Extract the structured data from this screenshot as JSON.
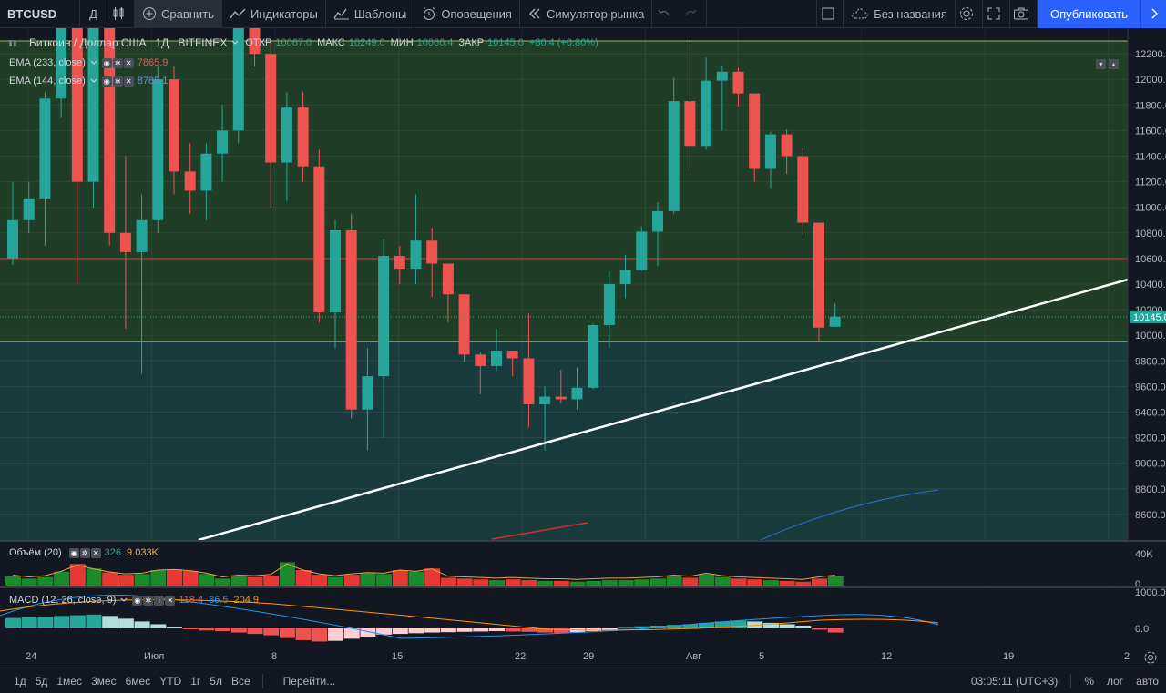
{
  "toolbar": {
    "symbol": "BTCUSD",
    "interval": "Д",
    "compare": "Сравнить",
    "indicators": "Индикаторы",
    "templates": "Шаблоны",
    "alerts": "Оповещения",
    "replay": "Симулятор рынка",
    "layout_name": "Без названия",
    "publish": "Опубликовать"
  },
  "legend": {
    "title": "Биткоин / Доллар США",
    "interval": "1Д",
    "exchange": "BITFINEX",
    "open_label": "ОТКР",
    "open_value": "10067.0",
    "high_label": "МАКС",
    "high_value": "10249.0",
    "low_label": "МИН",
    "low_value": "10066.4",
    "close_label": "ЗАКР",
    "close_value": "10145.0",
    "change": "+80.4 (+0.80%)",
    "ema1_label": "EMA (233, close)",
    "ema1_value": "7865.9",
    "ema2_label": "EMA (144, close)",
    "ema2_value": "8785.1",
    "volume_label": "Объём (20)",
    "volume_v1": "326",
    "volume_v2": "9.033K",
    "macd_label": "MACD (12, 26, close, 9)",
    "macd_v1": "118.4",
    "macd_v2": "86.5",
    "macd_v3": "204.9"
  },
  "colors": {
    "bg": "#131722",
    "up": "#26a69a",
    "down": "#ef5350",
    "green_zone": "#1f3d27",
    "teal_zone": "#1a3b3c",
    "red_line": "#c62828",
    "price_label": "#26a69a"
  },
  "chart_data": {
    "type": "candlestick",
    "symbol": "BTCUSD",
    "y_ticks": [
      "12200.0",
      "12000.0",
      "11800.0",
      "11600.0",
      "11400.0",
      "11200.0",
      "11000.0",
      "10800.0",
      "10600.0",
      "10400.0",
      "10200.0",
      "10000.0",
      "9800.0",
      "9600.0",
      "9400.0",
      "9200.0",
      "9000.0",
      "8800.0",
      "8600.0"
    ],
    "ylim": [
      8400,
      12400
    ],
    "current_price": "10145.0",
    "horizontal_levels": [
      10600,
      9950
    ],
    "zones": [
      {
        "from": 9950,
        "to": 12300
      },
      {
        "from": 8400,
        "to": 9950
      }
    ],
    "x_ticks": [
      "24",
      "Июл",
      "8",
      "15",
      "22",
      "29",
      "Авг",
      "5",
      "12",
      "19",
      "2"
    ],
    "candles": [
      {
        "o": 10600,
        "h": 11200,
        "l": 10550,
        "c": 10900
      },
      {
        "o": 10900,
        "h": 11200,
        "l": 10800,
        "c": 11070
      },
      {
        "o": 11070,
        "h": 11900,
        "l": 10700,
        "c": 11850
      },
      {
        "o": 11850,
        "h": 13200,
        "l": 11700,
        "c": 12800
      },
      {
        "o": 12800,
        "h": 13800,
        "l": 10400,
        "c": 11200
      },
      {
        "o": 11200,
        "h": 13000,
        "l": 11000,
        "c": 12500
      },
      {
        "o": 12500,
        "h": 12600,
        "l": 10700,
        "c": 10800
      },
      {
        "o": 10800,
        "h": 11400,
        "l": 10050,
        "c": 10650
      },
      {
        "o": 10650,
        "h": 11100,
        "l": 9700,
        "c": 10900
      },
      {
        "o": 10900,
        "h": 12100,
        "l": 10800,
        "c": 12000
      },
      {
        "o": 12000,
        "h": 12100,
        "l": 11100,
        "c": 11280
      },
      {
        "o": 11280,
        "h": 11500,
        "l": 10950,
        "c": 11130
      },
      {
        "o": 11130,
        "h": 11500,
        "l": 10900,
        "c": 11420
      },
      {
        "o": 11420,
        "h": 11800,
        "l": 11200,
        "c": 11600
      },
      {
        "o": 11600,
        "h": 13000,
        "l": 11500,
        "c": 12800
      },
      {
        "o": 12800,
        "h": 13100,
        "l": 12100,
        "c": 12200
      },
      {
        "o": 12200,
        "h": 12300,
        "l": 11000,
        "c": 11350
      },
      {
        "o": 11350,
        "h": 11900,
        "l": 11050,
        "c": 11780
      },
      {
        "o": 11780,
        "h": 11900,
        "l": 11200,
        "c": 11320
      },
      {
        "o": 11320,
        "h": 11450,
        "l": 10100,
        "c": 10180
      },
      {
        "o": 10180,
        "h": 10900,
        "l": 9900,
        "c": 10820
      },
      {
        "o": 10820,
        "h": 10950,
        "l": 9350,
        "c": 9420
      },
      {
        "o": 9420,
        "h": 9900,
        "l": 9100,
        "c": 9680
      },
      {
        "o": 9680,
        "h": 10750,
        "l": 9200,
        "c": 10620
      },
      {
        "o": 10620,
        "h": 10700,
        "l": 10400,
        "c": 10520
      },
      {
        "o": 10520,
        "h": 11100,
        "l": 10400,
        "c": 10740
      },
      {
        "o": 10740,
        "h": 10840,
        "l": 10300,
        "c": 10560
      },
      {
        "o": 10560,
        "h": 10560,
        "l": 10100,
        "c": 10320
      },
      {
        "o": 10320,
        "h": 10320,
        "l": 9790,
        "c": 9850
      },
      {
        "o": 9850,
        "h": 9870,
        "l": 9540,
        "c": 9760
      },
      {
        "o": 9760,
        "h": 10050,
        "l": 9720,
        "c": 9880
      },
      {
        "o": 9880,
        "h": 9880,
        "l": 9680,
        "c": 9820
      },
      {
        "o": 9820,
        "h": 10170,
        "l": 9280,
        "c": 9460
      },
      {
        "o": 9460,
        "h": 9600,
        "l": 9100,
        "c": 9520
      },
      {
        "o": 9520,
        "h": 9730,
        "l": 9470,
        "c": 9500
      },
      {
        "o": 9500,
        "h": 9750,
        "l": 9420,
        "c": 9590
      },
      {
        "o": 9590,
        "h": 10090,
        "l": 9580,
        "c": 10080
      },
      {
        "o": 10080,
        "h": 10500,
        "l": 9900,
        "c": 10400
      },
      {
        "o": 10400,
        "h": 10630,
        "l": 10290,
        "c": 10510
      },
      {
        "o": 10510,
        "h": 10850,
        "l": 10500,
        "c": 10810
      },
      {
        "o": 10810,
        "h": 11040,
        "l": 10540,
        "c": 10970
      },
      {
        "o": 10970,
        "h": 12010,
        "l": 10950,
        "c": 11830
      },
      {
        "o": 11830,
        "h": 12330,
        "l": 11280,
        "c": 11480
      },
      {
        "o": 11480,
        "h": 12170,
        "l": 11450,
        "c": 11990
      },
      {
        "o": 11990,
        "h": 12110,
        "l": 11600,
        "c": 12060
      },
      {
        "o": 12060,
        "h": 12090,
        "l": 11790,
        "c": 11890
      },
      {
        "o": 11890,
        "h": 11890,
        "l": 11200,
        "c": 11300
      },
      {
        "o": 11300,
        "h": 11590,
        "l": 11150,
        "c": 11570
      },
      {
        "o": 11570,
        "h": 11610,
        "l": 11260,
        "c": 11400
      },
      {
        "o": 11400,
        "h": 11460,
        "l": 10780,
        "c": 10880
      },
      {
        "o": 10880,
        "h": 10880,
        "l": 9950,
        "c": 10060
      },
      {
        "o": 10067,
        "h": 10249,
        "l": 10066.4,
        "c": 10145
      }
    ],
    "volume": {
      "y_ticks": [
        "40K",
        "0"
      ],
      "values": [
        12,
        9,
        11,
        18,
        28,
        22,
        17,
        14,
        15,
        20,
        21,
        19,
        15,
        9,
        12,
        11,
        13,
        30,
        20,
        14,
        11,
        14,
        16,
        15,
        20,
        18,
        22,
        10,
        9,
        8,
        7,
        8,
        7,
        6,
        6,
        5,
        6,
        7,
        7,
        8,
        9,
        12,
        10,
        15,
        11,
        9,
        8,
        7,
        6,
        5,
        9,
        12
      ]
    },
    "macd": {
      "y_ticks": [
        "1000.0",
        "0.0"
      ],
      "hist": [
        300,
        320,
        340,
        360,
        380,
        400,
        360,
        280,
        200,
        120,
        40,
        -20,
        -60,
        -80,
        -120,
        -160,
        -200,
        -280,
        -340,
        -380,
        -360,
        -300,
        -240,
        -180,
        -160,
        -140,
        -120,
        -110,
        -100,
        -90,
        -80,
        -90,
        -100,
        -120,
        -130,
        -110,
        -80,
        -40,
        20,
        60,
        80,
        100,
        120,
        160,
        200,
        220,
        200,
        160,
        120,
        80,
        -40,
        -120
      ]
    }
  },
  "bottom": {
    "ranges": [
      "1д",
      "5д",
      "1мес",
      "3мес",
      "6мес",
      "YTD",
      "1г",
      "5л",
      "Все"
    ],
    "goto": "Перейти...",
    "clock": "03:05:11 (UTC+3)",
    "percent": "%",
    "log": "лог",
    "auto": "авто"
  }
}
